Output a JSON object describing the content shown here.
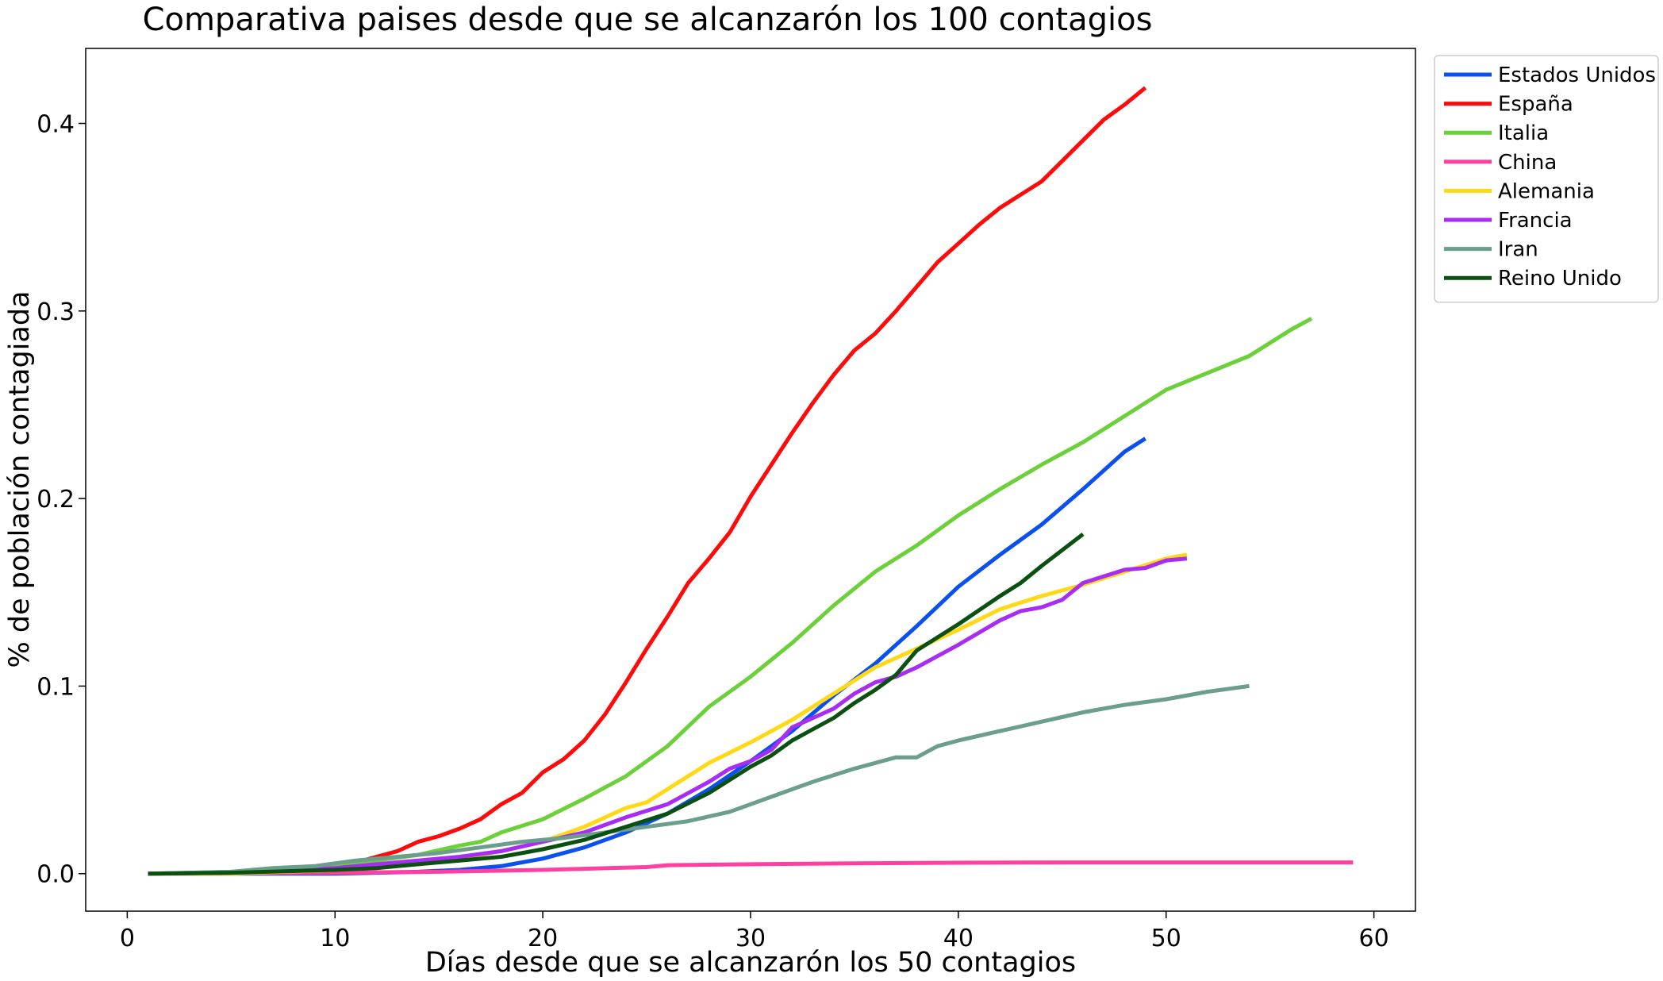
{
  "chart_data": {
    "type": "line",
    "title": "Comparativa paises desde que se alcanzarón los 100 contagios",
    "xlabel": "Días desde que se alcanzarón los 50 contagios",
    "ylabel": "% de población contagiada",
    "xlim": [
      -2,
      62
    ],
    "ylim": [
      -0.02,
      0.44
    ],
    "xticks": [
      0,
      10,
      20,
      30,
      40,
      50,
      60
    ],
    "xtick_labels": [
      "0",
      "10",
      "20",
      "30",
      "40",
      "50",
      "60"
    ],
    "yticks": [
      0.0,
      0.1,
      0.2,
      0.3,
      0.4
    ],
    "ytick_labels": [
      "0.0",
      "0.1",
      "0.2",
      "0.3",
      "0.4"
    ],
    "grid": false,
    "legend_position": "outside-top-right",
    "series": [
      {
        "name": "Estados Unidos",
        "color": "#0a4ff0",
        "x": [
          1,
          5,
          10,
          12,
          14,
          16,
          18,
          20,
          22,
          24,
          26,
          28,
          30,
          32,
          34,
          36,
          38,
          40,
          42,
          44,
          46,
          48,
          49
        ],
        "y": [
          0.0,
          0.0,
          0.0,
          0.0005,
          0.001,
          0.002,
          0.004,
          0.008,
          0.014,
          0.022,
          0.032,
          0.045,
          0.06,
          0.076,
          0.095,
          0.112,
          0.132,
          0.153,
          0.17,
          0.186,
          0.205,
          0.225,
          0.232
        ]
      },
      {
        "name": "España",
        "color": "#ff0a0a",
        "x": [
          1,
          5,
          10,
          12,
          13,
          14,
          15,
          16,
          17,
          18,
          19,
          20,
          21,
          22,
          23,
          24,
          25,
          26,
          27,
          28,
          29,
          30,
          31,
          32,
          33,
          34,
          35,
          36,
          37,
          38,
          39,
          40,
          41,
          42,
          43,
          44,
          45,
          46,
          47,
          48,
          49
        ],
        "y": [
          0.0,
          0.0005,
          0.003,
          0.009,
          0.012,
          0.017,
          0.02,
          0.024,
          0.029,
          0.037,
          0.043,
          0.054,
          0.061,
          0.071,
          0.085,
          0.102,
          0.12,
          0.137,
          0.155,
          0.168,
          0.182,
          0.201,
          0.218,
          0.235,
          0.251,
          0.266,
          0.279,
          0.288,
          0.3,
          0.313,
          0.326,
          0.336,
          0.346,
          0.355,
          0.362,
          0.369,
          0.38,
          0.391,
          0.402,
          0.41,
          0.419
        ]
      },
      {
        "name": "Italia",
        "color": "#6cd03a",
        "x": [
          1,
          5,
          10,
          12,
          14,
          16,
          17,
          18,
          20,
          22,
          24,
          26,
          28,
          29,
          30,
          32,
          34,
          36,
          38,
          40,
          42,
          44,
          46,
          48,
          50,
          52,
          54,
          56,
          57
        ],
        "y": [
          0.0,
          0.001,
          0.004,
          0.007,
          0.01,
          0.015,
          0.017,
          0.022,
          0.029,
          0.04,
          0.052,
          0.068,
          0.089,
          0.097,
          0.105,
          0.123,
          0.143,
          0.161,
          0.175,
          0.191,
          0.205,
          0.218,
          0.23,
          0.244,
          0.258,
          0.267,
          0.276,
          0.29,
          0.296
        ]
      },
      {
        "name": "China",
        "color": "#ff40a0",
        "x": [
          1,
          10,
          15,
          20,
          25,
          26,
          30,
          35,
          40,
          45,
          50,
          55,
          59
        ],
        "y": [
          0.0,
          0.0005,
          0.001,
          0.002,
          0.0035,
          0.0045,
          0.005,
          0.0055,
          0.0058,
          0.006,
          0.006,
          0.006,
          0.006
        ]
      },
      {
        "name": "Alemania",
        "color": "#ffd816",
        "x": [
          1,
          5,
          10,
          12,
          14,
          16,
          18,
          20,
          22,
          24,
          25,
          26,
          28,
          30,
          32,
          34,
          36,
          38,
          40,
          42,
          44,
          46,
          48,
          50,
          51
        ],
        "y": [
          0.0,
          0.0,
          0.002,
          0.004,
          0.006,
          0.008,
          0.012,
          0.017,
          0.025,
          0.035,
          0.038,
          0.045,
          0.059,
          0.07,
          0.082,
          0.096,
          0.11,
          0.12,
          0.13,
          0.141,
          0.148,
          0.154,
          0.161,
          0.168,
          0.17
        ]
      },
      {
        "name": "Francia",
        "color": "#a82cf4",
        "x": [
          1,
          5,
          10,
          12,
          14,
          16,
          18,
          20,
          22,
          24,
          26,
          28,
          29,
          30,
          31,
          32,
          34,
          35,
          36,
          37,
          38,
          40,
          42,
          43,
          44,
          45,
          46,
          48,
          49,
          50,
          51
        ],
        "y": [
          0.0,
          0.0005,
          0.003,
          0.005,
          0.007,
          0.009,
          0.012,
          0.017,
          0.022,
          0.03,
          0.037,
          0.049,
          0.056,
          0.06,
          0.066,
          0.078,
          0.088,
          0.096,
          0.102,
          0.105,
          0.11,
          0.122,
          0.135,
          0.14,
          0.142,
          0.146,
          0.155,
          0.162,
          0.163,
          0.167,
          0.168
        ]
      },
      {
        "name": "Iran",
        "color": "#6c9e8c",
        "x": [
          1,
          3,
          5,
          7,
          9,
          11,
          13,
          15,
          17,
          19,
          21,
          23,
          25,
          27,
          29,
          31,
          33,
          35,
          37,
          38,
          39,
          40,
          42,
          44,
          46,
          48,
          50,
          52,
          54
        ],
        "y": [
          0.0,
          0.0005,
          0.001,
          0.003,
          0.004,
          0.007,
          0.009,
          0.011,
          0.014,
          0.017,
          0.019,
          0.022,
          0.025,
          0.028,
          0.033,
          0.041,
          0.049,
          0.056,
          0.062,
          0.062,
          0.068,
          0.071,
          0.076,
          0.081,
          0.086,
          0.09,
          0.093,
          0.097,
          0.1
        ]
      },
      {
        "name": "Reino Unido",
        "color": "#0a5010",
        "x": [
          1,
          5,
          10,
          12,
          14,
          16,
          18,
          20,
          22,
          24,
          26,
          28,
          30,
          31,
          32,
          34,
          35,
          36,
          37,
          38,
          39,
          40,
          42,
          43,
          44,
          46
        ],
        "y": [
          0.0,
          0.0005,
          0.002,
          0.003,
          0.005,
          0.007,
          0.009,
          0.013,
          0.018,
          0.025,
          0.032,
          0.043,
          0.057,
          0.063,
          0.071,
          0.083,
          0.091,
          0.098,
          0.106,
          0.119,
          0.126,
          0.133,
          0.148,
          0.155,
          0.164,
          0.181
        ]
      }
    ]
  }
}
